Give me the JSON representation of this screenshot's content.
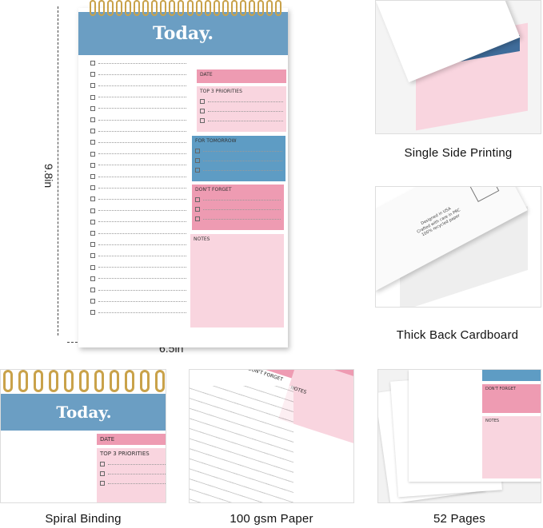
{
  "notepad": {
    "title": "Today.",
    "date_label": "DATE",
    "priorities_label": "TOP 3 PRIORITIES",
    "tomorrow_label": "FOR TOMORROW",
    "dont_forget_label": "DON'T FORGET",
    "notes_label": "NOTES"
  },
  "dimensions": {
    "height": "9.8in",
    "width": "6.5in"
  },
  "features": [
    {
      "caption": "Single Side Printing"
    },
    {
      "caption": "Thick Back Cardboard",
      "card_text": [
        "Designed in USA",
        "Crafted with care in PRC",
        "100% recycled paper"
      ]
    },
    {
      "caption": "Spiral Binding"
    },
    {
      "caption": "100 gsm Paper"
    },
    {
      "caption": "52 Pages"
    }
  ],
  "colors": {
    "blue": "#6b9ec3",
    "pink": "#ee9bb2",
    "light_pink": "#f9d5df",
    "dark_blue": "#3f6c9a",
    "gold": "#c9a24a"
  }
}
